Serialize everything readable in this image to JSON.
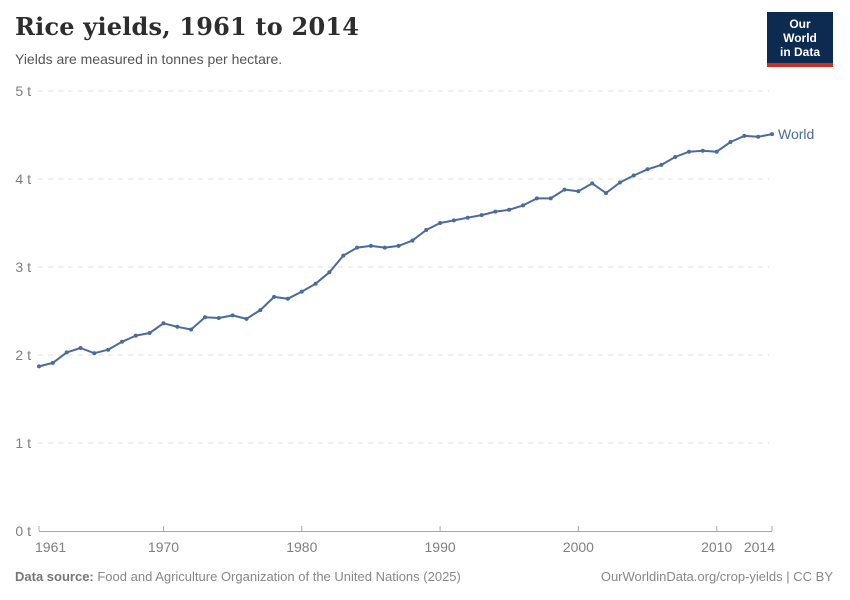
{
  "header": {
    "title": "Rice yields, 1961 to 2014",
    "subtitle": "Yields are measured in tonnes per hectare.",
    "logo": {
      "line1": "Our World",
      "line2": "in Data",
      "bg_color": "#0d2a51",
      "bar_color": "#cb3022"
    }
  },
  "chart_data": {
    "type": "line",
    "title": "Rice yields, 1961 to 2014",
    "subtitle": "Yields are measured in tonnes per hectare.",
    "unit": "t",
    "xlabel": "",
    "ylabel": "",
    "xlim": [
      1961,
      2014
    ],
    "ylim": [
      0,
      5
    ],
    "xticks": [
      1961,
      1970,
      1980,
      1990,
      2000,
      2010,
      2014
    ],
    "yticks": [
      0,
      1,
      2,
      3,
      4,
      5
    ],
    "grid": "horizontal-dashed",
    "legend_position": "end-of-line",
    "x": [
      1961,
      1962,
      1963,
      1964,
      1965,
      1966,
      1967,
      1968,
      1969,
      1970,
      1971,
      1972,
      1973,
      1974,
      1975,
      1976,
      1977,
      1978,
      1979,
      1980,
      1981,
      1982,
      1983,
      1984,
      1985,
      1986,
      1987,
      1988,
      1989,
      1990,
      1991,
      1992,
      1993,
      1994,
      1995,
      1996,
      1997,
      1998,
      1999,
      2000,
      2001,
      2002,
      2003,
      2004,
      2005,
      2006,
      2007,
      2008,
      2009,
      2010,
      2011,
      2012,
      2013,
      2014
    ],
    "series": [
      {
        "name": "World",
        "color": "#4C6A9C",
        "values": [
          1.87,
          1.91,
          2.03,
          2.08,
          2.02,
          2.06,
          2.15,
          2.22,
          2.25,
          2.36,
          2.32,
          2.29,
          2.43,
          2.42,
          2.45,
          2.41,
          2.51,
          2.66,
          2.64,
          2.72,
          2.81,
          2.94,
          3.13,
          3.22,
          3.24,
          3.22,
          3.24,
          3.3,
          3.42,
          3.5,
          3.53,
          3.56,
          3.59,
          3.63,
          3.65,
          3.7,
          3.78,
          3.78,
          3.88,
          3.86,
          3.95,
          3.84,
          3.96,
          4.04,
          4.11,
          4.16,
          4.25,
          4.31,
          4.32,
          4.31,
          4.42,
          4.49,
          4.48,
          4.51
        ]
      }
    ]
  },
  "colors": {
    "line_blue": "#4C6A9C",
    "gridline": "#e2e2e2",
    "axis": "#a8a8a8",
    "tick_text": "#7f7f7f"
  },
  "footer": {
    "source_label": "Data source:",
    "source_text": " Food and Agriculture Organization of the United Nations (2025)",
    "credit": "OurWorldinData.org/crop-yields | CC BY"
  }
}
